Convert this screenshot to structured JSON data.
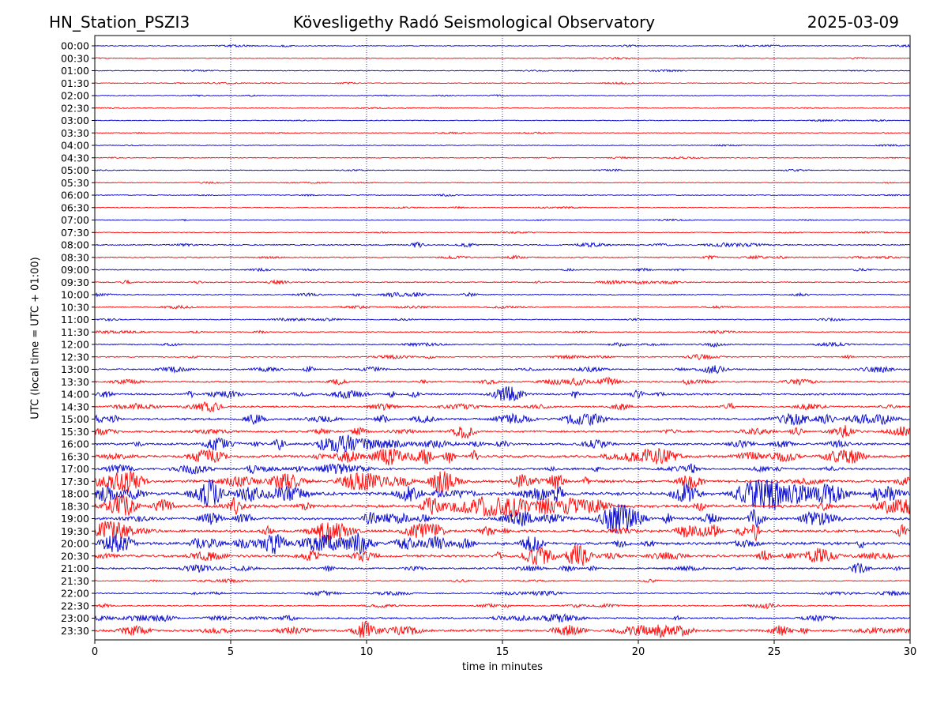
{
  "header": {
    "station": "HN_Station_PSZI3",
    "title": "Kövesligethy Radó Seismological Observatory",
    "date": "2025-03-09"
  },
  "chart_data": {
    "type": "line",
    "xlabel": "time in minutes",
    "ylabel": "UTC (local time = UTC + 01:00)",
    "xlim": [
      0,
      30
    ],
    "xticks": [
      0,
      5,
      10,
      15,
      20,
      25,
      30
    ],
    "grid": "vertical dotted lines at x = 5, 10, 15, 20, 25",
    "series_colors": [
      "#0000cc",
      "#ff0000"
    ],
    "color_rule": "alternating: lines starting on the hour blue, on the half hour red",
    "rows": [
      "00:00",
      "00:30",
      "01:00",
      "01:30",
      "02:00",
      "02:30",
      "03:00",
      "03:30",
      "04:00",
      "04:30",
      "05:00",
      "05:30",
      "06:00",
      "06:30",
      "07:00",
      "07:30",
      "08:00",
      "08:30",
      "09:00",
      "09:30",
      "10:00",
      "10:30",
      "11:00",
      "11:30",
      "12:00",
      "12:30",
      "13:00",
      "13:30",
      "14:00",
      "14:30",
      "15:00",
      "15:30",
      "16:00",
      "16:30",
      "17:00",
      "17:30",
      "18:00",
      "18:30",
      "19:00",
      "19:30",
      "20:00",
      "20:30",
      "21:00",
      "21:30",
      "22:00",
      "22:30",
      "23:00",
      "23:30"
    ],
    "activity": [
      0.3,
      0.2,
      0.2,
      0.2,
      0.2,
      0.2,
      0.2,
      0.2,
      0.2,
      0.2,
      0.2,
      0.2,
      0.2,
      0.2,
      0.2,
      0.2,
      0.6,
      0.5,
      0.4,
      0.5,
      0.5,
      0.4,
      0.4,
      0.4,
      0.5,
      0.5,
      0.8,
      0.9,
      1.1,
      1.0,
      1.4,
      1.2,
      1.5,
      1.7,
      1.3,
      2.0,
      2.4,
      2.1,
      1.8,
      1.8,
      2.0,
      1.6,
      1.0,
      0.4,
      0.6,
      0.5,
      0.9,
      1.5
    ]
  }
}
